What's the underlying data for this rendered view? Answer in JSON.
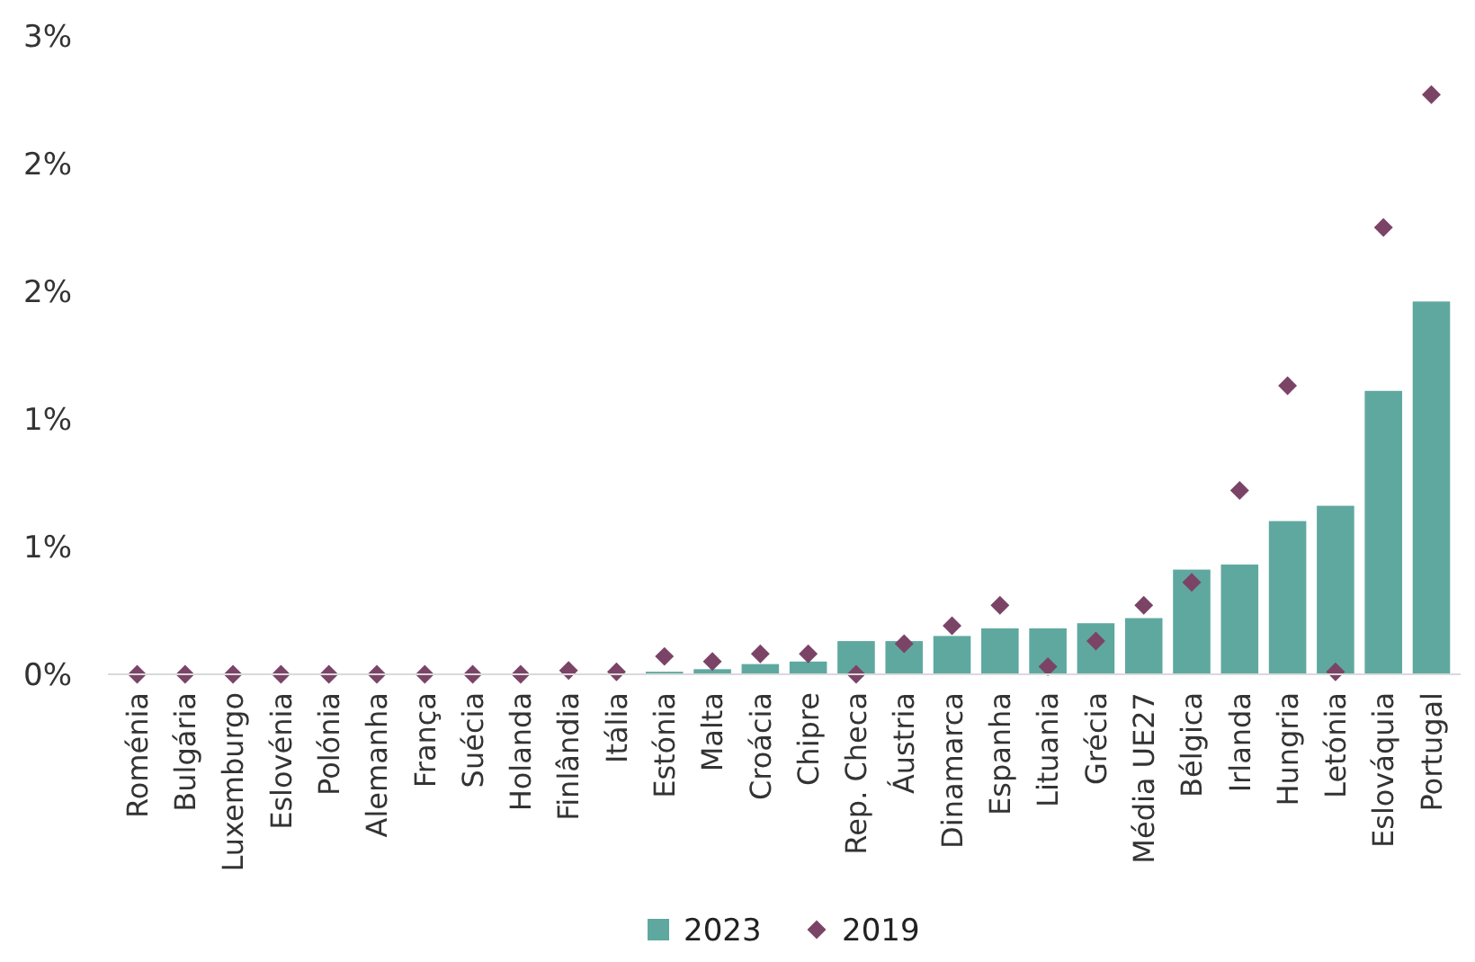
{
  "chart_data": {
    "type": "bar",
    "categories": [
      "Roménia",
      "Bulgária",
      "Luxemburgo",
      "Eslovénia",
      "Polónia",
      "Alemanha",
      "França",
      "Suécia",
      "Holanda",
      "Finlândia",
      "Itália",
      "Estónia",
      "Malta",
      "Croácia",
      "Chipre",
      "Rep. Checa",
      "Áustria",
      "Dinamarca",
      "Espanha",
      "Lituania",
      "Grécia",
      "Média UE27",
      "Bélgica",
      "Irlanda",
      "Hungria",
      "Letónia",
      "Eslováquia",
      "Portugal"
    ],
    "series": [
      {
        "name": "2023",
        "color": "#5fa8a0",
        "values": [
          0,
          0,
          0,
          0,
          0,
          0,
          0,
          0,
          0,
          0,
          0,
          0.01,
          0.02,
          0.04,
          0.05,
          0.13,
          0.13,
          0.15,
          0.18,
          0.18,
          0.2,
          0.22,
          0.41,
          0.43,
          0.6,
          0.66,
          1.11,
          1.46
        ]
      },
      {
        "name": "2019",
        "type": "scatter",
        "marker": "diamond",
        "color": "#7b4467",
        "values": [
          0,
          0,
          0,
          0,
          0,
          0,
          0,
          0,
          0,
          0.015,
          0.01,
          0.07,
          0.05,
          0.08,
          0.08,
          0,
          0.12,
          0.19,
          0.27,
          0.03,
          0.13,
          0.27,
          0.36,
          0.72,
          1.13,
          0.01,
          1.75,
          2.27
        ]
      }
    ],
    "ylim": [
      0,
      2.5
    ],
    "yticks": [
      {
        "value": 0,
        "label": "0%"
      },
      {
        "value": 0.5,
        "label": "1%"
      },
      {
        "value": 1,
        "label": "1%"
      },
      {
        "value": 1.5,
        "label": "2%"
      },
      {
        "value": 2,
        "label": "2%"
      },
      {
        "value": 2.5,
        "label": "3%"
      }
    ],
    "grid": false,
    "legend": "bottom"
  }
}
